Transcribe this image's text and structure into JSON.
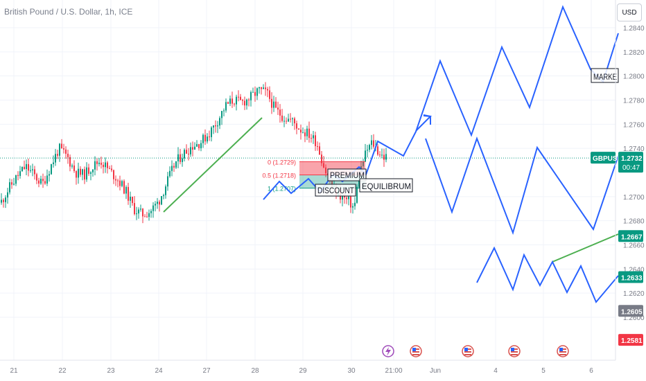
{
  "title": "British Pound / U.S. Dollar, 1h, ICE",
  "currency_button": "USD",
  "colors": {
    "up": "#089981",
    "down": "#f23645",
    "drawing": "#2962ff",
    "trendline": "#4caf50",
    "grid": "#f0f3fa",
    "axis_text": "#787b86"
  },
  "chart_data": {
    "type": "candlestick",
    "title": "British Pound / U.S. Dollar, 1h, ICE",
    "symbol": "GBPUSD",
    "last_price": "1.2732",
    "countdown": "00:47",
    "x_tick_labels": [
      "21",
      "22",
      "23",
      "24",
      "27",
      "28",
      "29",
      "30",
      "21:00",
      "Jun",
      "4",
      "5",
      "6"
    ],
    "y_tick_labels": [
      "1.2840",
      "1.2820",
      "1.2800",
      "1.2780",
      "1.2760",
      "1.2740",
      "1.2700",
      "1.2680",
      "1.2660",
      "1.2640",
      "1.2620",
      "1.2600"
    ],
    "ylim": [
      1.2575,
      1.285
    ],
    "price_levels": [
      {
        "label": "GBPUSD",
        "value": "1.2732",
        "sub": "00:47",
        "color": "#089981"
      },
      {
        "label": "",
        "value": "1.2667",
        "color": "#089981"
      },
      {
        "label": "",
        "value": "1.2633",
        "color": "#089981"
      },
      {
        "label": "",
        "value": "1.2605",
        "color": "#787b86"
      },
      {
        "label": "",
        "value": "1.2581",
        "color": "#f23645"
      }
    ],
    "fib_levels": [
      {
        "label": "0 (1.2729)",
        "value": 1.2729
      },
      {
        "label": "0.5 (1.2718)",
        "value": 1.2718
      },
      {
        "label": "1 (1.2707)",
        "value": 1.2707
      }
    ],
    "annotations": [
      "PREMIUM",
      "DISCOUNT",
      "EQUILIBRUM",
      "MARKE"
    ],
    "close_path": [
      [
        1.2695,
        0
      ],
      [
        1.2707,
        12
      ],
      [
        1.2717,
        24
      ],
      [
        1.2725,
        36
      ],
      [
        1.2718,
        48
      ],
      [
        1.271,
        60
      ],
      [
        1.2725,
        72
      ],
      [
        1.274,
        84
      ],
      [
        1.2733,
        96
      ],
      [
        1.272,
        108
      ],
      [
        1.2718,
        120
      ],
      [
        1.2725,
        132
      ],
      [
        1.273,
        144
      ],
      [
        1.2722,
        156
      ],
      [
        1.2715,
        168
      ],
      [
        1.2705,
        180
      ],
      [
        1.269,
        192
      ],
      [
        1.2685,
        204
      ],
      [
        1.2688,
        216
      ],
      [
        1.2696,
        228
      ],
      [
        1.2712,
        240
      ],
      [
        1.2728,
        252
      ],
      [
        1.2736,
        264
      ],
      [
        1.2742,
        276
      ],
      [
        1.2745,
        288
      ],
      [
        1.2752,
        300
      ],
      [
        1.2762,
        312
      ],
      [
        1.2775,
        324
      ],
      [
        1.278,
        336
      ],
      [
        1.2778,
        348
      ],
      [
        1.2782,
        360
      ],
      [
        1.2788,
        372
      ],
      [
        1.2786,
        384
      ],
      [
        1.2772,
        396
      ],
      [
        1.2766,
        408
      ],
      [
        1.2763,
        420
      ],
      [
        1.2756,
        432
      ],
      [
        1.2752,
        444
      ],
      [
        1.2745,
        456
      ],
      [
        1.2722,
        468
      ],
      [
        1.2706,
        480
      ],
      [
        1.27,
        492
      ],
      [
        1.2695,
        504
      ],
      [
        1.269,
        510
      ],
      [
        1.2715,
        516
      ],
      [
        1.2728,
        522
      ],
      [
        1.2738,
        528
      ],
      [
        1.2745,
        536
      ],
      [
        1.2738,
        544
      ],
      [
        1.2733,
        552
      ],
      [
        1.2732,
        558
      ]
    ]
  }
}
